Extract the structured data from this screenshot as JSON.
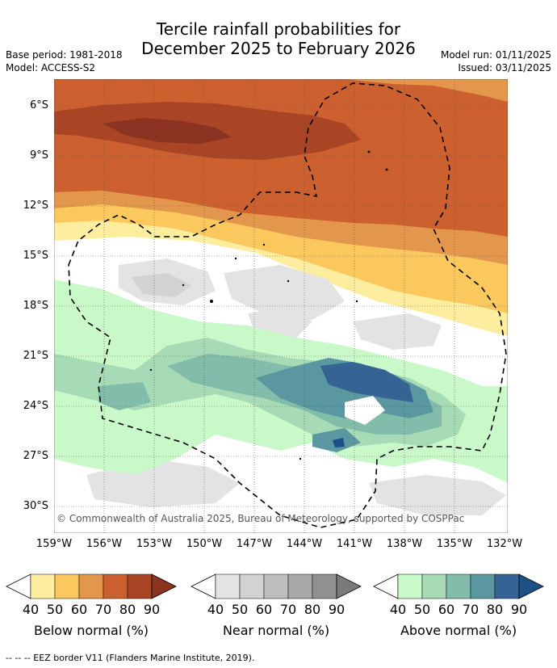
{
  "title_line1": "Tercile rainfall probabilities for",
  "title_line2": "December 2025 to February 2026",
  "base_period": "Base period: 1981-2018",
  "model": "Model: ACCESS-S2",
  "model_run": "Model run: 01/11/2025",
  "issued": "Issued: 03/11/2025",
  "copyright": "© Commonwealth of Australia 2025, Bureau of Meteorology, supported by COSPPac",
  "lat_labels": [
    "6°S",
    "9°S",
    "12°S",
    "15°S",
    "18°S",
    "21°S",
    "24°S",
    "27°S",
    "30°S"
  ],
  "lon_labels": [
    "159°W",
    "156°W",
    "153°W",
    "150°W",
    "147°W",
    "144°W",
    "141°W",
    "138°W",
    "135°W",
    "132°W"
  ],
  "colorbars": [
    {
      "label": "Below normal (%)",
      "ticks": [
        "40",
        "50",
        "60",
        "70",
        "80",
        "90"
      ],
      "colors": [
        "#fdee9f",
        "#fbc85e",
        "#e2974c",
        "#cc612f",
        "#a94525",
        "#8b3220"
      ]
    },
    {
      "label": "Near normal (%)",
      "ticks": [
        "40",
        "50",
        "60",
        "70",
        "80",
        "90"
      ],
      "colors": [
        "#e3e3e3",
        "#d2d2d2",
        "#bdbdbd",
        "#a8a8a8",
        "#909090",
        "#7a7a7a"
      ]
    },
    {
      "label": "Above normal (%)",
      "ticks": [
        "40",
        "50",
        "60",
        "70",
        "80",
        "90"
      ],
      "colors": [
        "#c9f8c9",
        "#a7dbb6",
        "#82bcab",
        "#5b97a0",
        "#356494",
        "#1e4f86"
      ]
    }
  ],
  "legend_note": "-- -- -- EEZ border V11 (Flanders Marine Institute, 2019)."
}
